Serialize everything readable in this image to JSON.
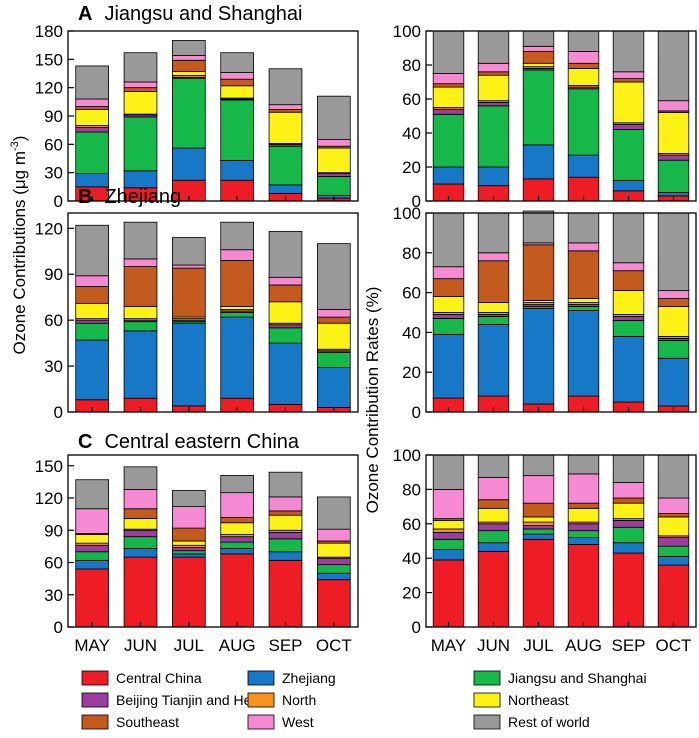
{
  "figure": {
    "ylabel_left": "Ozone Contributions (μg m⁻³)",
    "ylabel_left_main": "Ozone Contributions (μg m",
    "ylabel_left_sup": "-3",
    "ylabel_left_close": ")",
    "ylabel_right": "Ozone Contribution Rates (%)"
  },
  "colors": {
    "Central China": "#ee1c24",
    "Zhejiang": "#1878c8",
    "Jiangsu and Shanghai": "#17b84a",
    "Beijing Tianjin and Hebei": "#9b3ea0",
    "North": "#f7921e",
    "Northeast": "#fdf215",
    "Southeast": "#c35a1e",
    "West": "#f58ad2",
    "Rest of world": "#999999"
  },
  "legend": {
    "items": [
      "Central China",
      "Zhejiang",
      "Jiangsu and Shanghai",
      "Beijing Tianjin and Hebei",
      "North",
      "Northeast",
      "Southeast",
      "West",
      "Rest of world"
    ]
  },
  "chart_data": [
    {
      "type": "bar",
      "stacked": true,
      "panel": "A",
      "title": "Jiangsu and Shanghai",
      "side": "left",
      "categories": [
        "MAY",
        "JUN",
        "JUL",
        "AUG",
        "SEP",
        "OCT"
      ],
      "ylim": [
        0,
        180
      ],
      "yticks": [
        0,
        30,
        60,
        90,
        120,
        150,
        180
      ],
      "ylabel": "Ozone Contributions (μg m⁻³)",
      "series": [
        {
          "name": "Central China",
          "values": [
            15,
            14,
            22,
            22,
            8,
            3
          ]
        },
        {
          "name": "Zhejiang",
          "values": [
            14,
            18,
            34,
            21,
            9,
            3
          ]
        },
        {
          "name": "Jiangsu and Shanghai",
          "values": [
            44,
            57,
            74,
            64,
            41,
            20
          ]
        },
        {
          "name": "Beijing Tianjin and Hebei",
          "values": [
            5,
            2,
            1,
            1,
            2,
            3
          ]
        },
        {
          "name": "North",
          "values": [
            2,
            1,
            2,
            1,
            1,
            1
          ]
        },
        {
          "name": "Northeast",
          "values": [
            17,
            24,
            4,
            13,
            33,
            26
          ]
        },
        {
          "name": "Southeast",
          "values": [
            3,
            4,
            12,
            7,
            3,
            2
          ]
        },
        {
          "name": "West",
          "values": [
            8,
            6,
            5,
            7,
            5,
            7
          ]
        },
        {
          "name": "Rest of world",
          "values": [
            35,
            31,
            16,
            21,
            38,
            46
          ]
        }
      ]
    },
    {
      "type": "bar",
      "stacked": true,
      "panel": "A",
      "title": "Jiangsu and Shanghai",
      "side": "right",
      "categories": [
        "MAY",
        "JUN",
        "JUL",
        "AUG",
        "SEP",
        "OCT"
      ],
      "ylim": [
        0,
        100
      ],
      "yticks": [
        0,
        20,
        40,
        60,
        80,
        100
      ],
      "ylabel": "Ozone Contribution Rates (%)",
      "series": [
        {
          "name": "Central China",
          "values": [
            10,
            9,
            13,
            14,
            6,
            3
          ]
        },
        {
          "name": "Zhejiang",
          "values": [
            10,
            11,
            20,
            13,
            6,
            2
          ]
        },
        {
          "name": "Jiangsu and Shanghai",
          "values": [
            31,
            36,
            44,
            39,
            30,
            19
          ]
        },
        {
          "name": "Beijing Tianjin and Hebei",
          "values": [
            3,
            2,
            1,
            1,
            3,
            3
          ]
        },
        {
          "name": "North",
          "values": [
            1,
            1,
            1,
            1,
            1,
            1
          ]
        },
        {
          "name": "Northeast",
          "values": [
            12,
            15,
            2,
            10,
            24,
            24
          ]
        },
        {
          "name": "Southeast",
          "values": [
            2,
            2,
            7,
            3,
            2,
            1
          ]
        },
        {
          "name": "West",
          "values": [
            6,
            5,
            3,
            7,
            4,
            6
          ]
        },
        {
          "name": "Rest of world",
          "values": [
            25,
            19,
            9,
            12,
            24,
            41
          ]
        }
      ]
    },
    {
      "type": "bar",
      "stacked": true,
      "panel": "B",
      "title": "Zhejiang",
      "side": "left",
      "categories": [
        "MAY",
        "JUN",
        "JUL",
        "AUG",
        "SEP",
        "OCT"
      ],
      "ylim": [
        0,
        130
      ],
      "yticks": [
        0,
        30,
        60,
        90,
        120
      ],
      "ylabel": "Ozone Contributions (μg m⁻³)",
      "series": [
        {
          "name": "Central China",
          "values": [
            8,
            9,
            4,
            9,
            5,
            3
          ]
        },
        {
          "name": "Zhejiang",
          "values": [
            39,
            44,
            54,
            53,
            40,
            26
          ]
        },
        {
          "name": "Jiangsu and Shanghai",
          "values": [
            11,
            6,
            1,
            3,
            10,
            10
          ]
        },
        {
          "name": "Beijing Tianjin and Hebei",
          "values": [
            2,
            1,
            1,
            1,
            2,
            1
          ]
        },
        {
          "name": "North",
          "values": [
            1,
            1,
            1,
            1,
            1,
            1
          ]
        },
        {
          "name": "Northeast",
          "values": [
            10,
            8,
            1,
            2,
            14,
            17
          ]
        },
        {
          "name": "Southeast",
          "values": [
            11,
            26,
            32,
            30,
            11,
            4
          ]
        },
        {
          "name": "West",
          "values": [
            7,
            5,
            2,
            7,
            5,
            5
          ]
        },
        {
          "name": "Rest of world",
          "values": [
            33,
            24,
            18,
            18,
            30,
            43
          ]
        }
      ]
    },
    {
      "type": "bar",
      "stacked": true,
      "panel": "B",
      "title": "Zhejiang",
      "side": "right",
      "categories": [
        "MAY",
        "JUN",
        "JUL",
        "AUG",
        "SEP",
        "OCT"
      ],
      "ylim": [
        0,
        100
      ],
      "yticks": [
        0,
        20,
        40,
        60,
        80,
        100
      ],
      "ylabel": "Ozone Contribution Rates (%)",
      "series": [
        {
          "name": "Central China",
          "values": [
            7,
            8,
            4,
            8,
            5,
            3
          ]
        },
        {
          "name": "Zhejiang",
          "values": [
            32,
            36,
            48,
            43,
            33,
            24
          ]
        },
        {
          "name": "Jiangsu and Shanghai",
          "values": [
            8,
            4,
            1,
            2,
            8,
            9
          ]
        },
        {
          "name": "Beijing Tianjin and Hebei",
          "values": [
            2,
            1,
            1,
            1,
            2,
            1
          ]
        },
        {
          "name": "North",
          "values": [
            1,
            1,
            1,
            1,
            1,
            1
          ]
        },
        {
          "name": "Northeast",
          "values": [
            8,
            5,
            1,
            2,
            12,
            15
          ]
        },
        {
          "name": "Southeast",
          "values": [
            9,
            21,
            28,
            24,
            10,
            4
          ]
        },
        {
          "name": "West",
          "values": [
            6,
            4,
            1,
            4,
            4,
            4
          ]
        },
        {
          "name": "Rest of world",
          "values": [
            27,
            20,
            16,
            15,
            25,
            39
          ]
        }
      ]
    },
    {
      "type": "bar",
      "stacked": true,
      "panel": "C",
      "title": "Central eastern China",
      "side": "left",
      "categories": [
        "MAY",
        "JUN",
        "JUL",
        "AUG",
        "SEP",
        "OCT"
      ],
      "ylim": [
        0,
        160
      ],
      "yticks": [
        0,
        30,
        60,
        90,
        120,
        150
      ],
      "ylabel": "Ozone Contributions (μg m⁻³)",
      "series": [
        {
          "name": "Central China",
          "values": [
            54,
            65,
            65,
            68,
            62,
            44
          ]
        },
        {
          "name": "Zhejiang",
          "values": [
            8,
            8,
            3,
            5,
            8,
            6
          ]
        },
        {
          "name": "Jiangsu and Shanghai",
          "values": [
            8,
            11,
            3,
            6,
            12,
            8
          ]
        },
        {
          "name": "Beijing Tianjin and Hebei",
          "values": [
            6,
            6,
            3,
            5,
            6,
            6
          ]
        },
        {
          "name": "North",
          "values": [
            2,
            1,
            2,
            2,
            2,
            1
          ]
        },
        {
          "name": "Northeast",
          "values": [
            8,
            10,
            4,
            11,
            14,
            13
          ]
        },
        {
          "name": "Southeast",
          "values": [
            1,
            9,
            12,
            5,
            4,
            2
          ]
        },
        {
          "name": "West",
          "values": [
            23,
            18,
            20,
            23,
            13,
            11
          ]
        },
        {
          "name": "Rest of world",
          "values": [
            27,
            21,
            15,
            16,
            23,
            30
          ]
        }
      ]
    },
    {
      "type": "bar",
      "stacked": true,
      "panel": "C",
      "title": "Central eastern China",
      "side": "right",
      "categories": [
        "MAY",
        "JUN",
        "JUL",
        "AUG",
        "SEP",
        "OCT"
      ],
      "ylim": [
        0,
        100
      ],
      "yticks": [
        0,
        20,
        40,
        60,
        80,
        100
      ],
      "ylabel": "Ozone Contribution Rates (%)",
      "series": [
        {
          "name": "Central China",
          "values": [
            39,
            44,
            51,
            48,
            43,
            36
          ]
        },
        {
          "name": "Zhejiang",
          "values": [
            6,
            5,
            3,
            4,
            6,
            5
          ]
        },
        {
          "name": "Jiangsu and Shanghai",
          "values": [
            6,
            7,
            3,
            4,
            9,
            6
          ]
        },
        {
          "name": "Beijing Tianjin and Hebei",
          "values": [
            4,
            4,
            2,
            4,
            4,
            5
          ]
        },
        {
          "name": "North",
          "values": [
            2,
            1,
            2,
            1,
            1,
            1
          ]
        },
        {
          "name": "Northeast",
          "values": [
            5,
            8,
            3,
            8,
            9,
            11
          ]
        },
        {
          "name": "Southeast",
          "values": [
            1,
            5,
            8,
            3,
            3,
            2
          ]
        },
        {
          "name": "West",
          "values": [
            17,
            13,
            16,
            17,
            9,
            9
          ]
        },
        {
          "name": "Rest of world",
          "values": [
            20,
            13,
            12,
            11,
            16,
            25
          ]
        }
      ]
    }
  ]
}
